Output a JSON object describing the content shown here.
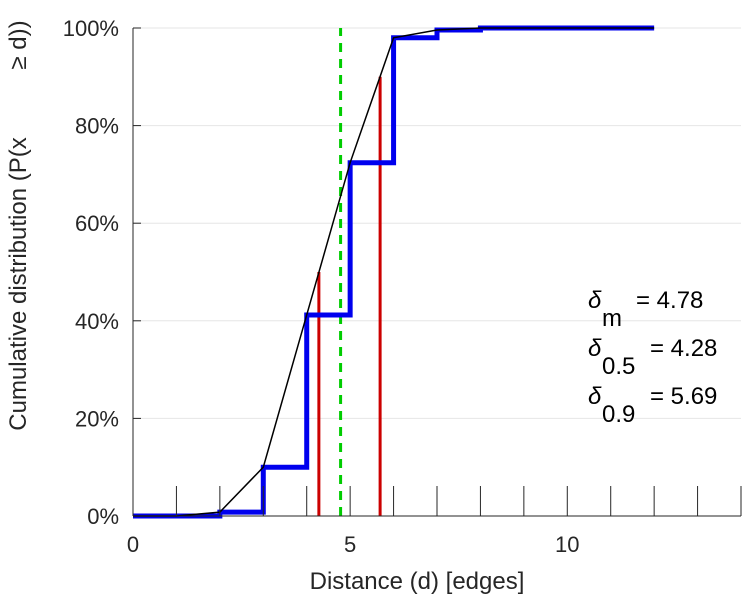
{
  "chart_data": {
    "type": "line",
    "title": "",
    "xlabel": "Distance (d) [edges]",
    "ylabel_main": "Cumulative distribution (P(x",
    "ylabel_tail": "≥ d))",
    "xlim": [
      0,
      14
    ],
    "ylim": [
      0,
      100
    ],
    "x_ticks": [
      0,
      5,
      10
    ],
    "x_tick_labels": [
      "0",
      "5",
      "10"
    ],
    "y_ticks": [
      0,
      20,
      40,
      60,
      80,
      100
    ],
    "y_tick_labels": [
      "0%",
      "20%",
      "40%",
      "60%",
      "80%",
      "100%"
    ],
    "grid": "horizontal",
    "series": [
      {
        "style": "step",
        "color": "#0000ee",
        "points": [
          [
            0,
            0
          ],
          [
            1,
            0
          ],
          [
            2,
            0.8
          ],
          [
            3,
            10
          ],
          [
            4,
            41.2
          ],
          [
            5,
            72.4
          ],
          [
            6,
            98
          ],
          [
            7,
            99.6
          ],
          [
            8,
            100
          ],
          [
            9,
            100
          ],
          [
            10,
            100
          ],
          [
            11,
            100
          ],
          [
            12,
            100
          ]
        ]
      },
      {
        "style": "line",
        "color": "#000000",
        "points": [
          [
            0,
            0
          ],
          [
            1,
            0
          ],
          [
            2,
            0.8
          ],
          [
            3,
            10
          ],
          [
            4,
            41.2
          ],
          [
            5,
            72.4
          ],
          [
            6,
            98
          ],
          [
            7,
            99.6
          ],
          [
            8,
            100
          ],
          [
            9,
            100
          ],
          [
            10,
            100
          ],
          [
            11,
            100
          ],
          [
            12,
            100
          ]
        ]
      }
    ],
    "vlines": [
      {
        "x": 4.78,
        "y0": 0,
        "y1": 100,
        "color": "#00cc00",
        "dash": true
      },
      {
        "x": 4.28,
        "y0": 0,
        "y1": 50,
        "color": "#cc0000",
        "dash": false
      },
      {
        "x": 5.69,
        "y0": 0,
        "y1": 90,
        "color": "#cc0000",
        "dash": false
      }
    ],
    "annotations": [
      {
        "symbol": "δ",
        "sub": "m",
        "text": "= 4.78"
      },
      {
        "symbol": "δ",
        "sub": "0.5",
        "text": "= 4.28"
      },
      {
        "symbol": "δ",
        "sub": "0.9",
        "text": "= 5.69"
      }
    ]
  }
}
